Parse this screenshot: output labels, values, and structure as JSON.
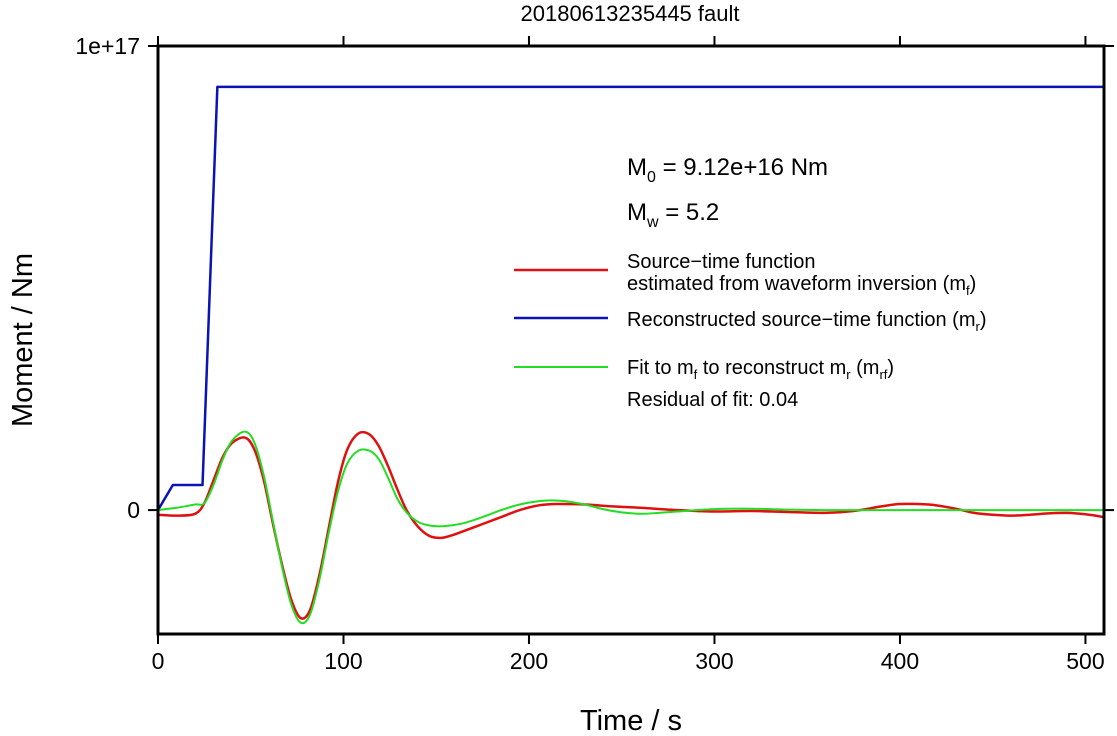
{
  "chart_data": {
    "type": "line",
    "title": "20180613235445 fault",
    "xlabel": "Time / s",
    "ylabel": "Moment / Nm",
    "xlim": [
      0,
      510
    ],
    "ylim": [
      -2.67e+16,
      1e+17
    ],
    "grid": false,
    "x_ticks": [
      {
        "value": 0,
        "label": "0"
      },
      {
        "value": 100,
        "label": "100"
      },
      {
        "value": 200,
        "label": "200"
      },
      {
        "value": 300,
        "label": "300"
      },
      {
        "value": 400,
        "label": "400"
      },
      {
        "value": 500,
        "label": "500"
      }
    ],
    "y_ticks": [
      {
        "value": 0,
        "label": "0"
      },
      {
        "value": 1e+17,
        "label": "1e+17"
      }
    ],
    "annotations": {
      "m0": {
        "main": "M",
        "sub": "0",
        "rest": " = 9.12e+16 Nm"
      },
      "mw": {
        "main": "M",
        "sub": "w",
        "rest": " = 5.2"
      },
      "residual": "Residual of fit: 0.04"
    },
    "legend": {
      "position": "right",
      "entries": [
        {
          "key": "mf",
          "color": "#e01010",
          "line1": "Source−time function",
          "line2": "estimated from waveform inversion (m",
          "line2_sub": "f",
          "line2_end": ")"
        },
        {
          "key": "mr",
          "color": "#0a14b4",
          "line1": "Reconstructed source−time function (m",
          "line1_sub": "r",
          "line1_end": ")"
        },
        {
          "key": "mrf",
          "color": "#22dd22",
          "p1": "Fit to m",
          "s1": "f",
          "p2": " to reconstruct m",
          "s2": "r",
          "p3": " (m",
          "s3": "rf",
          "p4": ")"
        }
      ]
    },
    "series": [
      {
        "key": "mr",
        "color": "#0a14b4",
        "x": [
          0,
          8,
          24,
          32,
          510
        ],
        "y": [
          0,
          5400000000000000.0,
          5400000000000000.0,
          9.12e+16,
          9.12e+16
        ]
      },
      {
        "key": "mf",
        "color": "#e01010",
        "x": [
          0,
          10,
          20,
          25,
          30,
          35,
          40,
          47,
          52,
          57,
          62,
          67,
          72,
          77,
          82,
          87,
          92,
          97,
          102,
          108,
          114,
          119,
          124,
          129,
          134,
          140,
          146,
          152,
          158,
          165,
          175,
          185,
          195,
          205,
          215,
          230,
          245,
          260,
          280,
          300,
          320,
          340,
          360,
          375,
          390,
          400,
          410,
          420,
          430,
          440,
          450,
          460,
          470,
          480,
          490,
          500,
          510
        ],
        "y": [
          -1000000000000000.0,
          -1200000000000000.0,
          -800000000000000.0,
          1500000000000000.0,
          6500000000000000.0,
          1.15e+16,
          1.45e+16,
          1.56e+16,
          1.3e+16,
          6500000000000000.0,
          -3000000000000000.0,
          -1.2e+16,
          -1.95e+16,
          -2.33e+16,
          -2.15e+16,
          -1.4e+16,
          -4000000000000000.0,
          6000000000000000.0,
          1.3e+16,
          1.65e+16,
          1.63e+16,
          1.38e+16,
          9500000000000000.0,
          4500000000000000.0,
          0.0,
          -3500000000000000.0,
          -5500000000000000.0,
          -6000000000000000.0,
          -5500000000000000.0,
          -4500000000000000.0,
          -3000000000000000.0,
          -1500000000000000.0,
          0.0,
          1000000000000000.0,
          1300000000000000.0,
          1200000000000000.0,
          800000000000000.0,
          500000000000000.0,
          0.0,
          -300000000000000.0,
          -200000000000000.0,
          -400000000000000.0,
          -600000000000000.0,
          -200000000000000.0,
          800000000000000.0,
          1300000000000000.0,
          1300000000000000.0,
          1000000000000000.0,
          300000000000000.0,
          -600000000000000.0,
          -1000000000000000.0,
          -1200000000000000.0,
          -1000000000000000.0,
          -700000000000000.0,
          -600000000000000.0,
          -900000000000000.0,
          -1500000000000000.0
        ]
      },
      {
        "key": "mrf",
        "color": "#22dd22",
        "x": [
          0,
          10,
          20,
          25,
          30,
          35,
          40,
          47,
          52,
          57,
          62,
          67,
          72,
          77,
          82,
          87,
          92,
          97,
          102,
          108,
          114,
          119,
          124,
          129,
          134,
          140,
          146,
          152,
          158,
          165,
          175,
          185,
          195,
          205,
          212,
          220,
          230,
          240,
          250,
          260,
          270,
          280,
          300,
          320,
          340,
          360,
          380,
          400,
          420,
          440,
          460,
          480,
          500,
          510
        ],
        "y": [
          0.0,
          500000000000000.0,
          1200000000000000.0,
          1500000000000000.0,
          5500000000000000.0,
          1.1e+16,
          1.5e+16,
          1.69e+16,
          1.45e+16,
          7500000000000000.0,
          -2500000000000000.0,
          -1.25e+16,
          -2.05e+16,
          -2.43e+16,
          -2.25e+16,
          -1.5e+16,
          -5000000000000000.0,
          4000000000000000.0,
          1e+16,
          1.28e+16,
          1.28e+16,
          1.1e+16,
          7000000000000000.0,
          2500000000000000.0,
          -500000000000000.0,
          -2500000000000000.0,
          -3300000000000000.0,
          -3500000000000000.0,
          -3300000000000000.0,
          -2800000000000000.0,
          -1500000000000000.0,
          0.0,
          1200000000000000.0,
          1900000000000000.0,
          2100000000000000.0,
          1900000000000000.0,
          1200000000000000.0,
          200000000000000.0,
          -500000000000000.0,
          -800000000000000.0,
          -600000000000000.0,
          -300000000000000.0,
          200000000000000.0,
          300000000000000.0,
          100000000000000.0,
          0.0,
          0.0,
          0.0,
          0.0,
          0.0,
          0.0,
          0.0,
          0.0,
          0.0
        ]
      }
    ]
  }
}
